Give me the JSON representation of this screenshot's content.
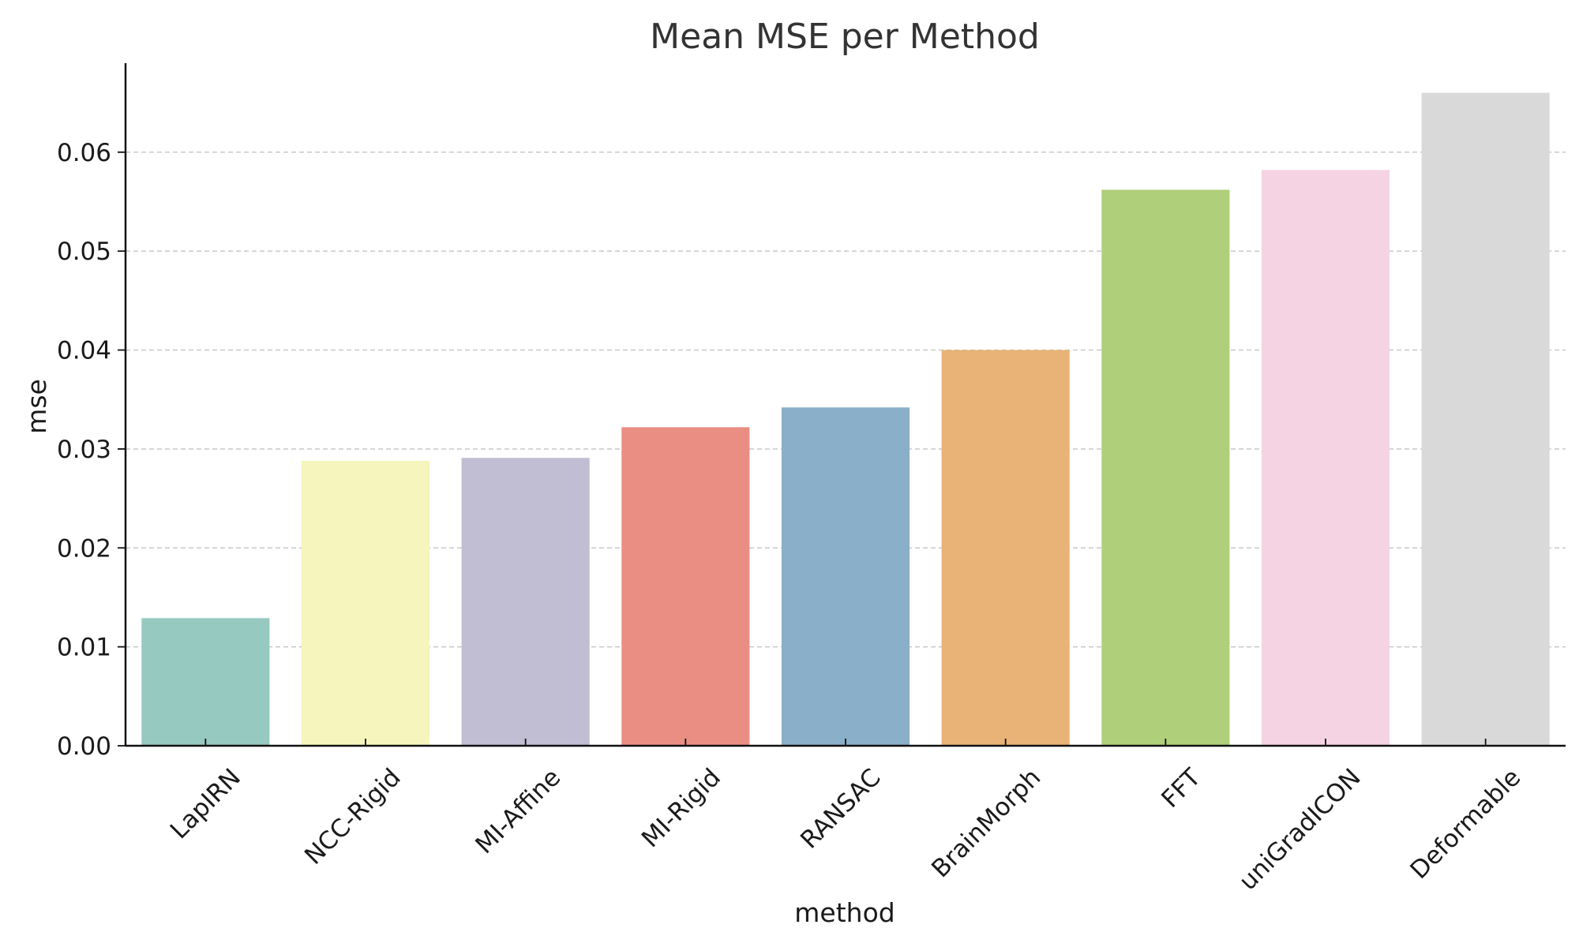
{
  "chart_data": {
    "type": "bar",
    "title": "Mean MSE per Method",
    "xlabel": "method",
    "ylabel": "mse",
    "categories": [
      "LapIRN",
      "NCC-Rigid",
      "MI-Affine",
      "MI-Rigid",
      "RANSAC",
      "BrainMorph",
      "FFT",
      "uniGradICON",
      "Deformable"
    ],
    "values": [
      0.0129,
      0.0288,
      0.0291,
      0.0322,
      0.0342,
      0.04,
      0.0562,
      0.0582,
      0.066
    ],
    "colors": [
      "#96c9bf",
      "#f6f5bd",
      "#c1bdd3",
      "#ea8e84",
      "#8aafc8",
      "#e9b276",
      "#b0cf7a",
      "#f5d3e3",
      "#d9d9d9"
    ],
    "ylim": [
      0,
      0.069
    ],
    "yticks": [
      0.0,
      0.01,
      0.02,
      0.03,
      0.04,
      0.05,
      0.06
    ],
    "ytick_labels": [
      "0.00",
      "0.01",
      "0.02",
      "0.03",
      "0.04",
      "0.05",
      "0.06"
    ],
    "grid": "y-dashed",
    "legend": "none"
  }
}
